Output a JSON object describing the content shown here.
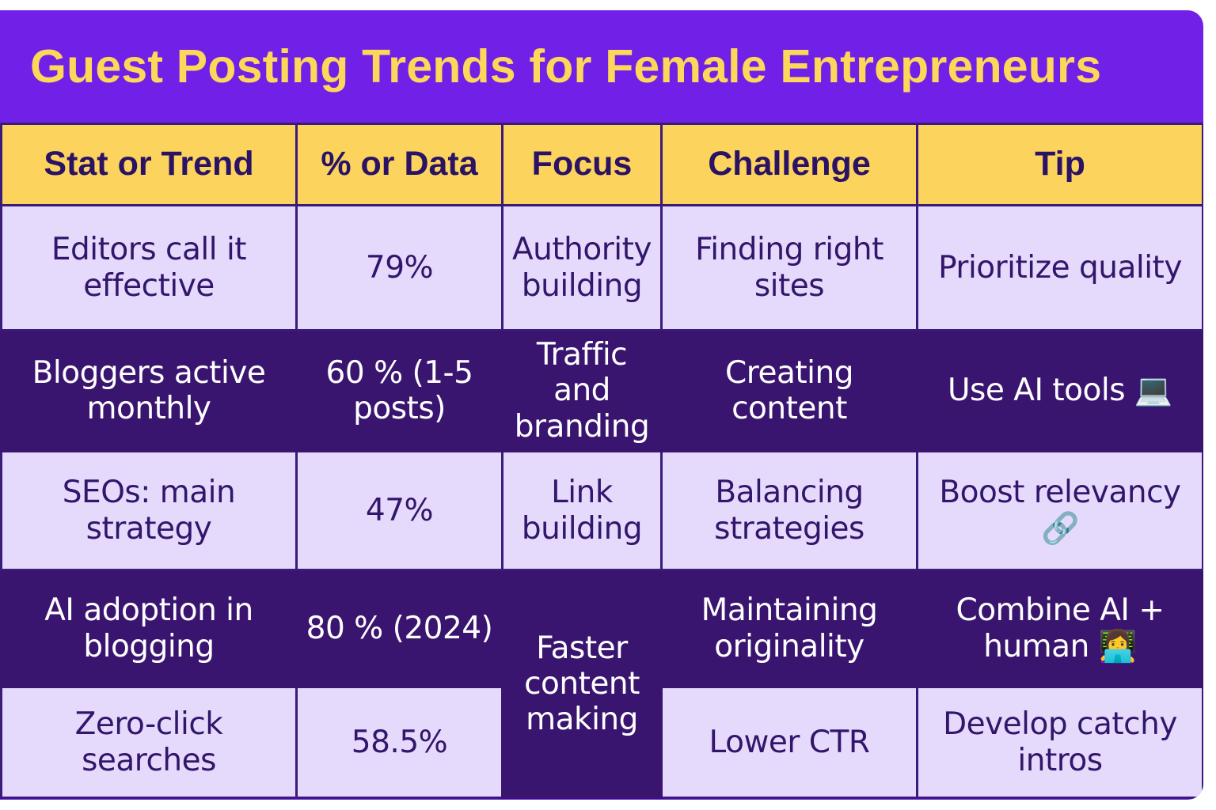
{
  "title": "Guest Posting Trends for Female Entrepreneurs",
  "colors": {
    "banner": "#7120e8",
    "title_text": "#fcd75a",
    "header_bg": "#fbd35d",
    "row_light": "#e6dafc",
    "row_dark": "#3a1570"
  },
  "headers": [
    "Stat or Trend",
    "% or Data",
    "Focus",
    "Challenge",
    "Tip"
  ],
  "rows": [
    {
      "stat": "Editors call it effective",
      "data": "79%",
      "focus": "Authority building",
      "challenge": "Finding right sites",
      "tip": "Prioritize quality"
    },
    {
      "stat": "Bloggers active monthly",
      "data": "60 % (1-5 posts)",
      "focus": "Traffic and branding",
      "challenge": "Creating content",
      "tip": "Use AI tools 💻"
    },
    {
      "stat": "SEOs: main strategy",
      "data": "47%",
      "focus": "Link building",
      "challenge": "Balancing strategies",
      "tip": "Boost relevancy 🔗"
    },
    {
      "stat": "AI adoption in blogging",
      "data": "80 % (2024)",
      "focus": "Faster content making",
      "challenge": "Maintaining originality",
      "tip": "Combine AI + human 👩‍💻"
    },
    {
      "stat": "Zero-click searches",
      "data": "58.5%",
      "challenge": "Lower CTR",
      "tip": "Develop catchy intros"
    }
  ]
}
